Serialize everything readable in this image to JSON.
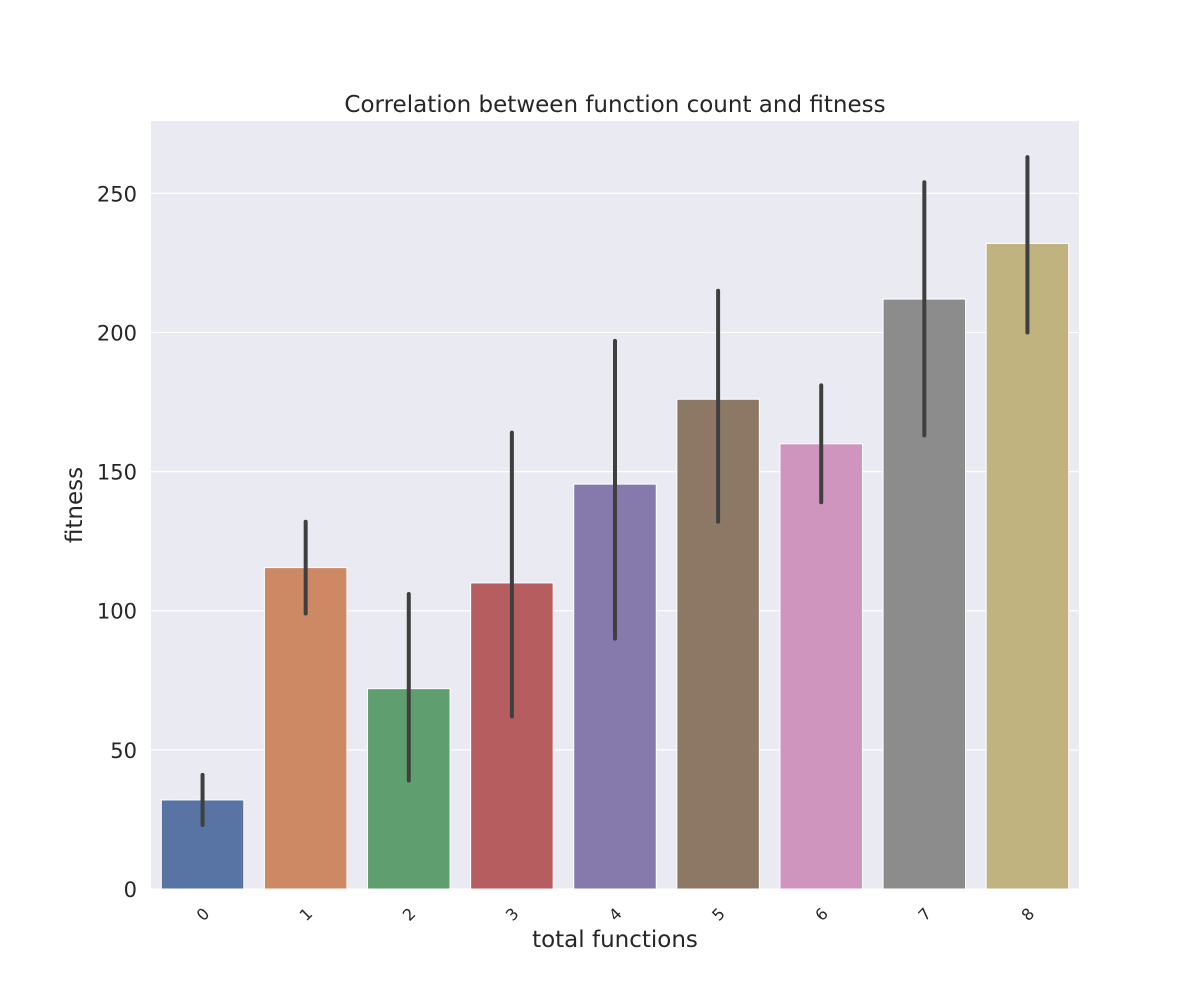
{
  "chart_data": {
    "type": "bar",
    "title": "Correlation between function count and fitness",
    "xlabel": "total functions",
    "ylabel": "fitness",
    "categories": [
      "0",
      "1",
      "2",
      "3",
      "4",
      "5",
      "6",
      "7",
      "8"
    ],
    "values": [
      32,
      115.5,
      72,
      110,
      145.5,
      176,
      160,
      212,
      232
    ],
    "error_low": [
      23,
      99,
      39,
      62,
      90,
      132,
      139,
      163,
      200
    ],
    "error_high": [
      41,
      132,
      106,
      164,
      197,
      215,
      181,
      254,
      263
    ],
    "colors": [
      "#5874a5",
      "#cc8963",
      "#5f9e6e",
      "#b65d60",
      "#857aab",
      "#8d7866",
      "#d095bf",
      "#8c8c8c",
      "#c1b37f"
    ],
    "yticks": [
      0,
      50,
      100,
      150,
      200,
      250
    ],
    "ylim": [
      0,
      276
    ],
    "grid": true,
    "background": "#eaeaf2",
    "error_color": "#3f3f3f"
  }
}
